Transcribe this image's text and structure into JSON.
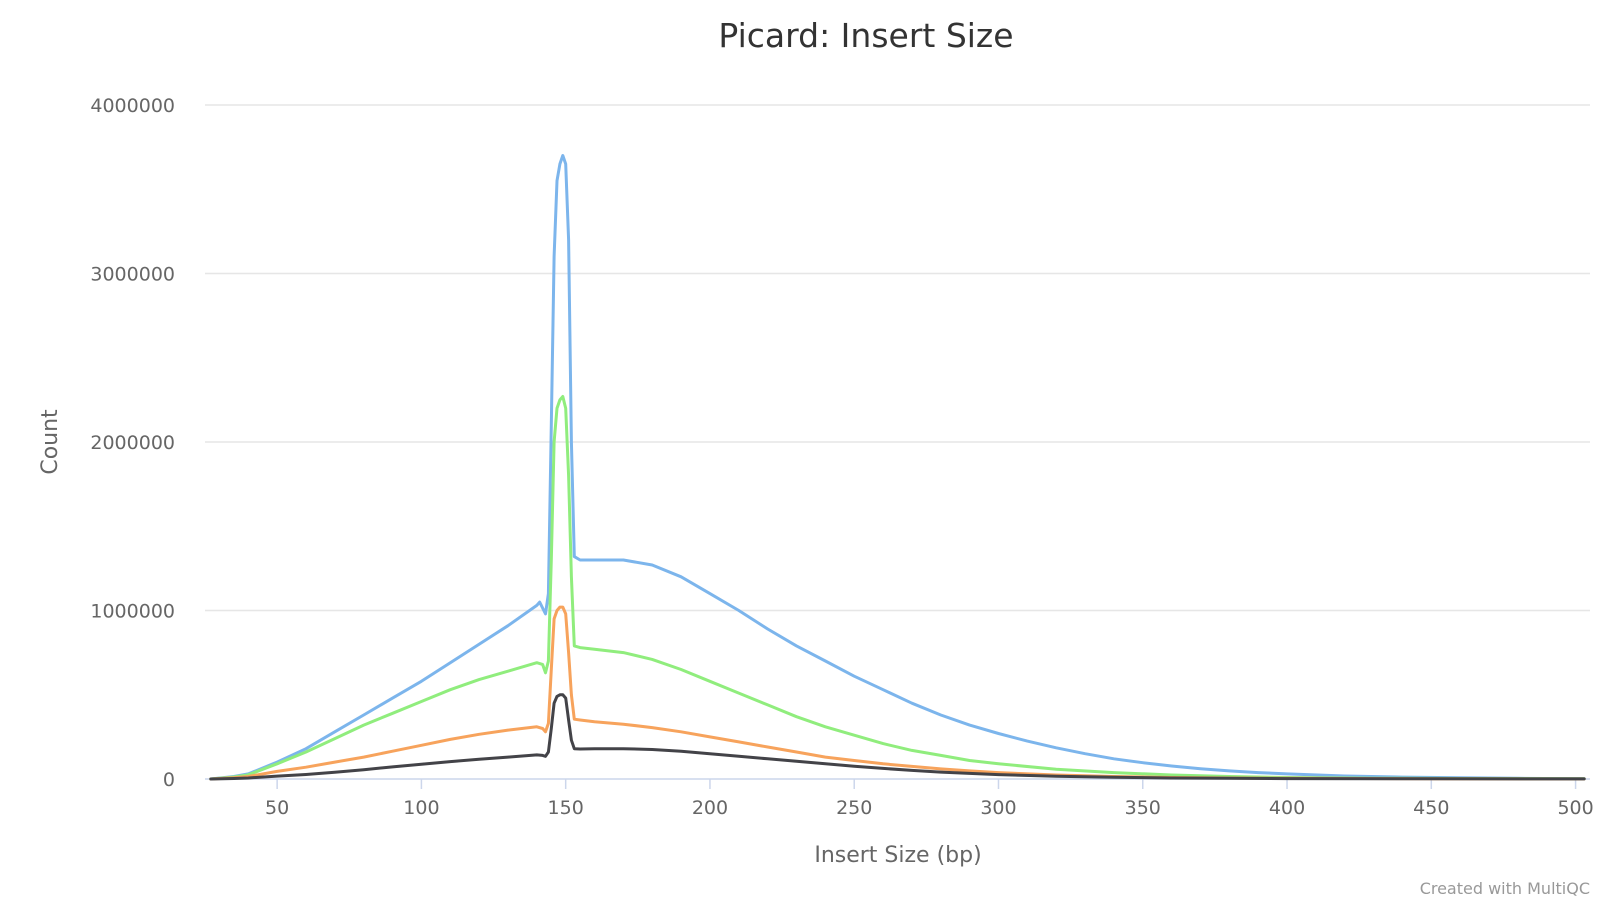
{
  "chart_data": {
    "type": "line",
    "title": "Picard: Insert Size",
    "xlabel": "Insert Size (bp)",
    "ylabel": "Count",
    "xlim": [
      25,
      505
    ],
    "ylim": [
      0,
      4000000
    ],
    "x_ticks": [
      50,
      100,
      150,
      200,
      250,
      300,
      350,
      400,
      450,
      500
    ],
    "y_ticks": [
      0,
      1000000,
      2000000,
      3000000,
      4000000
    ],
    "grid": true,
    "legend": "none",
    "credit": "Created with MultiQC",
    "series": [
      {
        "color": "#7cb5ec",
        "points": [
          [
            27,
            0
          ],
          [
            35,
            15000
          ],
          [
            40,
            30000
          ],
          [
            50,
            100000
          ],
          [
            60,
            180000
          ],
          [
            70,
            280000
          ],
          [
            80,
            380000
          ],
          [
            90,
            480000
          ],
          [
            100,
            580000
          ],
          [
            110,
            690000
          ],
          [
            120,
            800000
          ],
          [
            130,
            910000
          ],
          [
            140,
            1030000
          ],
          [
            141,
            1050000
          ],
          [
            143,
            980000
          ],
          [
            144,
            1100000
          ],
          [
            145,
            2100000
          ],
          [
            146,
            3100000
          ],
          [
            147,
            3550000
          ],
          [
            148,
            3650000
          ],
          [
            149,
            3700000
          ],
          [
            150,
            3650000
          ],
          [
            151,
            3200000
          ],
          [
            152,
            2000000
          ],
          [
            153,
            1320000
          ],
          [
            155,
            1300000
          ],
          [
            160,
            1300000
          ],
          [
            170,
            1300000
          ],
          [
            180,
            1270000
          ],
          [
            190,
            1200000
          ],
          [
            200,
            1100000
          ],
          [
            210,
            1000000
          ],
          [
            220,
            890000
          ],
          [
            230,
            790000
          ],
          [
            240,
            700000
          ],
          [
            250,
            610000
          ],
          [
            260,
            530000
          ],
          [
            270,
            450000
          ],
          [
            280,
            380000
          ],
          [
            290,
            320000
          ],
          [
            300,
            270000
          ],
          [
            310,
            225000
          ],
          [
            320,
            185000
          ],
          [
            330,
            150000
          ],
          [
            340,
            120000
          ],
          [
            350,
            97000
          ],
          [
            360,
            77000
          ],
          [
            370,
            61000
          ],
          [
            380,
            48000
          ],
          [
            390,
            38000
          ],
          [
            400,
            30000
          ],
          [
            420,
            18000
          ],
          [
            440,
            11000
          ],
          [
            460,
            7000
          ],
          [
            480,
            4000
          ],
          [
            503,
            2000
          ]
        ]
      },
      {
        "color": "#90ed7d",
        "points": [
          [
            27,
            0
          ],
          [
            35,
            12000
          ],
          [
            40,
            25000
          ],
          [
            50,
            90000
          ],
          [
            60,
            160000
          ],
          [
            70,
            240000
          ],
          [
            80,
            320000
          ],
          [
            90,
            390000
          ],
          [
            100,
            460000
          ],
          [
            110,
            530000
          ],
          [
            120,
            590000
          ],
          [
            130,
            640000
          ],
          [
            140,
            690000
          ],
          [
            142,
            680000
          ],
          [
            143,
            630000
          ],
          [
            144,
            700000
          ],
          [
            145,
            1300000
          ],
          [
            146,
            2000000
          ],
          [
            147,
            2200000
          ],
          [
            148,
            2250000
          ],
          [
            149,
            2270000
          ],
          [
            150,
            2200000
          ],
          [
            151,
            1800000
          ],
          [
            152,
            1200000
          ],
          [
            153,
            790000
          ],
          [
            155,
            780000
          ],
          [
            160,
            770000
          ],
          [
            170,
            750000
          ],
          [
            180,
            710000
          ],
          [
            190,
            650000
          ],
          [
            200,
            580000
          ],
          [
            210,
            510000
          ],
          [
            220,
            440000
          ],
          [
            230,
            370000
          ],
          [
            240,
            310000
          ],
          [
            250,
            260000
          ],
          [
            260,
            210000
          ],
          [
            270,
            170000
          ],
          [
            280,
            140000
          ],
          [
            290,
            110000
          ],
          [
            300,
            90000
          ],
          [
            320,
            58000
          ],
          [
            340,
            38000
          ],
          [
            360,
            24000
          ],
          [
            380,
            15000
          ],
          [
            400,
            9000
          ],
          [
            430,
            5000
          ],
          [
            460,
            3000
          ],
          [
            503,
            1000
          ]
        ]
      },
      {
        "color": "#f7a35c",
        "points": [
          [
            27,
            0
          ],
          [
            35,
            7000
          ],
          [
            40,
            15000
          ],
          [
            50,
            45000
          ],
          [
            60,
            70000
          ],
          [
            70,
            100000
          ],
          [
            80,
            130000
          ],
          [
            90,
            165000
          ],
          [
            100,
            200000
          ],
          [
            110,
            235000
          ],
          [
            120,
            265000
          ],
          [
            130,
            290000
          ],
          [
            140,
            310000
          ],
          [
            142,
            300000
          ],
          [
            143,
            280000
          ],
          [
            144,
            330000
          ],
          [
            145,
            650000
          ],
          [
            146,
            950000
          ],
          [
            147,
            1000000
          ],
          [
            148,
            1020000
          ],
          [
            149,
            1020000
          ],
          [
            150,
            980000
          ],
          [
            151,
            750000
          ],
          [
            152,
            500000
          ],
          [
            153,
            355000
          ],
          [
            155,
            350000
          ],
          [
            160,
            340000
          ],
          [
            170,
            325000
          ],
          [
            180,
            305000
          ],
          [
            190,
            280000
          ],
          [
            200,
            250000
          ],
          [
            210,
            220000
          ],
          [
            220,
            190000
          ],
          [
            230,
            160000
          ],
          [
            240,
            130000
          ],
          [
            250,
            110000
          ],
          [
            260,
            90000
          ],
          [
            270,
            75000
          ],
          [
            280,
            60000
          ],
          [
            290,
            48000
          ],
          [
            300,
            38000
          ],
          [
            320,
            24000
          ],
          [
            340,
            15000
          ],
          [
            360,
            9000
          ],
          [
            380,
            6000
          ],
          [
            400,
            4000
          ],
          [
            450,
            1500
          ],
          [
            503,
            500
          ]
        ]
      },
      {
        "color": "#434348",
        "points": [
          [
            27,
            0
          ],
          [
            35,
            3000
          ],
          [
            40,
            6000
          ],
          [
            50,
            17000
          ],
          [
            60,
            27000
          ],
          [
            70,
            40000
          ],
          [
            80,
            55000
          ],
          [
            90,
            72000
          ],
          [
            100,
            88000
          ],
          [
            110,
            103000
          ],
          [
            120,
            117000
          ],
          [
            130,
            130000
          ],
          [
            140,
            143000
          ],
          [
            142,
            140000
          ],
          [
            143,
            135000
          ],
          [
            144,
            160000
          ],
          [
            145,
            300000
          ],
          [
            146,
            450000
          ],
          [
            147,
            490000
          ],
          [
            148,
            500000
          ],
          [
            149,
            500000
          ],
          [
            150,
            480000
          ],
          [
            151,
            350000
          ],
          [
            152,
            230000
          ],
          [
            153,
            180000
          ],
          [
            155,
            178000
          ],
          [
            160,
            180000
          ],
          [
            170,
            180000
          ],
          [
            180,
            175000
          ],
          [
            190,
            165000
          ],
          [
            200,
            150000
          ],
          [
            210,
            135000
          ],
          [
            220,
            120000
          ],
          [
            230,
            105000
          ],
          [
            240,
            90000
          ],
          [
            250,
            76000
          ],
          [
            260,
            63000
          ],
          [
            270,
            51000
          ],
          [
            280,
            41000
          ],
          [
            290,
            33000
          ],
          [
            300,
            26000
          ],
          [
            320,
            16000
          ],
          [
            340,
            10000
          ],
          [
            360,
            6000
          ],
          [
            380,
            4000
          ],
          [
            400,
            2500
          ],
          [
            450,
            1000
          ],
          [
            503,
            300
          ]
        ]
      }
    ]
  }
}
